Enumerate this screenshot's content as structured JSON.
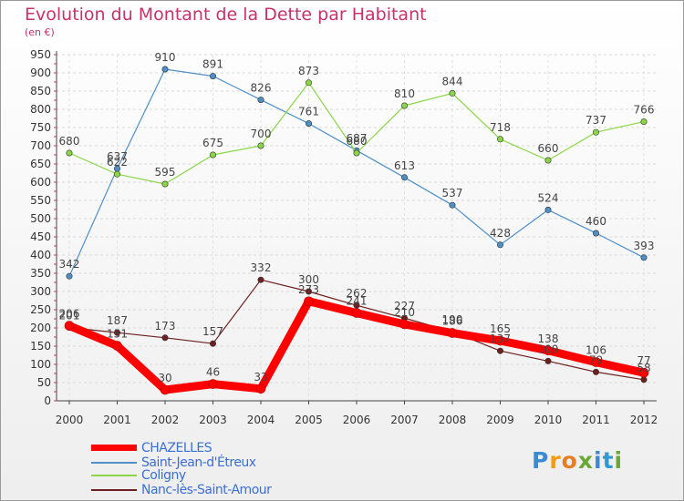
{
  "title": "Evolution du Montant de la Dette par Habitant",
  "unit": "(en €)",
  "logo": {
    "letters": [
      "P",
      "r",
      "o",
      "x",
      "i",
      "t",
      "i"
    ],
    "colors": [
      "#3a8bd6",
      "#f39c12",
      "#e67e22",
      "#6aa832",
      "#3a8bd6",
      "#2e9bd6",
      "#6aa832"
    ]
  },
  "chart_data": {
    "type": "line",
    "x": [
      "2000",
      "2001",
      "2002",
      "2003",
      "2004",
      "2005",
      "2006",
      "2007",
      "2008",
      "2009",
      "2010",
      "2011",
      "2012"
    ],
    "ylim": [
      0,
      950
    ],
    "yticks": [
      0,
      50,
      100,
      150,
      200,
      250,
      300,
      350,
      400,
      450,
      500,
      550,
      600,
      650,
      700,
      750,
      800,
      850,
      900,
      950
    ],
    "grid": true,
    "legend_position": "bottom-left",
    "series": [
      {
        "name": "CHAZELLES",
        "color": "#ff0000",
        "values": [
          206,
          151,
          30,
          46,
          33,
          273,
          241,
          210,
          186,
          165,
          138,
          106,
          77
        ]
      },
      {
        "name": "Saint-Jean-d'Étreux",
        "color": "#4f8fc8",
        "values": [
          342,
          637,
          910,
          891,
          826,
          761,
          687,
          613,
          537,
          428,
          524,
          460,
          393
        ]
      },
      {
        "name": "Coligny",
        "color": "#8ad646",
        "values": [
          680,
          622,
          595,
          675,
          700,
          873,
          680,
          810,
          844,
          718,
          660,
          737,
          766
        ]
      },
      {
        "name": "Nanc-lès-Saint-Amour",
        "color": "#6e1f1f",
        "values": [
          201,
          187,
          173,
          157,
          332,
          300,
          262,
          227,
          190,
          137,
          109,
          79,
          58
        ]
      }
    ]
  }
}
